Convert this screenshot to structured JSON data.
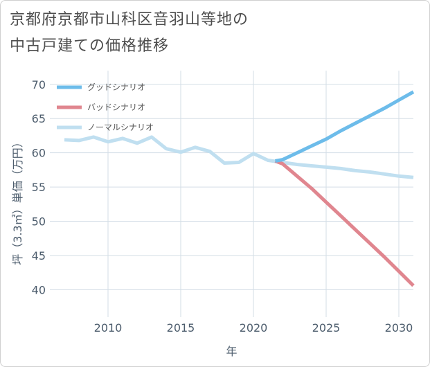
{
  "title_line1": "京都府京都市山科区音羽山等地の",
  "title_line2": "中古戸建ての価格推移",
  "chart_data": {
    "type": "line",
    "title": "京都府京都市山科区音羽山等地の中古戸建ての価格推移",
    "xlabel": "年",
    "ylabel": "坪（3.3㎡）単価（万円）",
    "xlim": [
      2006,
      2031
    ],
    "ylim": [
      36,
      72
    ],
    "xticks": [
      2010,
      2015,
      2020,
      2025,
      2030
    ],
    "yticks": [
      40,
      45,
      50,
      55,
      60,
      65,
      70
    ],
    "grid": true,
    "legend_position": "top-left",
    "series": [
      {
        "name": "グッドシナリオ",
        "color": "#6dbcea",
        "x": [
          2021.5,
          2022,
          2023,
          2024,
          2025,
          2026,
          2027,
          2028,
          2029,
          2030,
          2031
        ],
        "y": [
          58.8,
          59.0,
          60.0,
          61.0,
          62.0,
          63.2,
          64.3,
          65.4,
          66.5,
          67.7,
          68.9
        ]
      },
      {
        "name": "バッドシナリオ",
        "color": "#e0868f",
        "x": [
          2021.5,
          2022,
          2023,
          2024,
          2025,
          2026,
          2027,
          2028,
          2029,
          2030,
          2031
        ],
        "y": [
          58.8,
          58.4,
          56.6,
          54.8,
          52.8,
          50.8,
          48.8,
          46.8,
          44.8,
          42.7,
          40.6
        ]
      },
      {
        "name": "ノーマルシナリオ",
        "color": "#c0dff0",
        "x": [
          2007,
          2008,
          2009,
          2010,
          2011,
          2012,
          2013,
          2014,
          2015,
          2016,
          2017,
          2018,
          2019,
          2020,
          2021,
          2022,
          2023,
          2024,
          2025,
          2026,
          2027,
          2028,
          2029,
          2030,
          2031
        ],
        "y": [
          61.9,
          61.8,
          62.3,
          61.6,
          62.1,
          61.4,
          62.3,
          60.6,
          60.1,
          60.8,
          60.2,
          58.5,
          58.6,
          59.9,
          58.9,
          58.6,
          58.3,
          58.1,
          57.9,
          57.7,
          57.4,
          57.2,
          56.9,
          56.6,
          56.4
        ]
      }
    ]
  }
}
